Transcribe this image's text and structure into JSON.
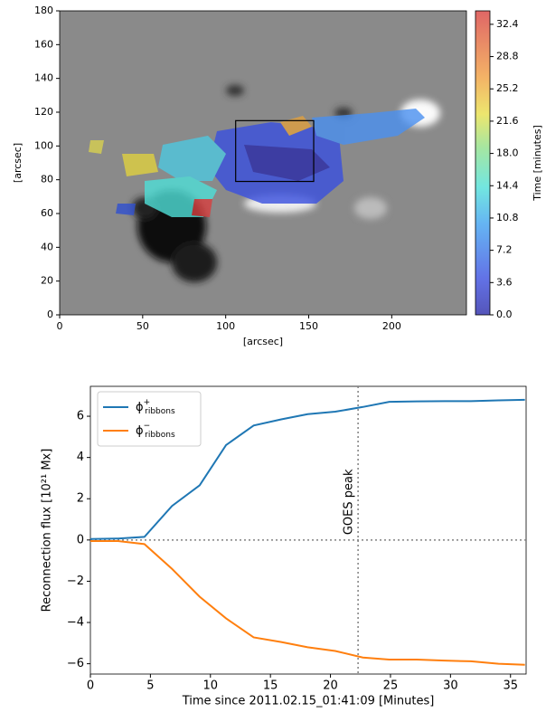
{
  "chart_data": [
    {
      "type": "image",
      "xlabel": "[arcsec]",
      "ylabel": "[arcsec]",
      "xlim": [
        0,
        245
      ],
      "xticks": [
        0,
        50,
        100,
        150,
        200
      ],
      "ylim": [
        0,
        180
      ],
      "yticks": [
        0,
        20,
        40,
        60,
        80,
        100,
        120,
        140,
        160,
        180
      ],
      "box": {
        "x": [
          106,
          153
        ],
        "y": [
          79,
          115
        ]
      },
      "colorbar": {
        "label": "Time [minutes]",
        "lim": [
          0,
          33.9
        ],
        "ticks": [
          {
            "value": 0,
            "label": "0.0"
          },
          3.6,
          7.2,
          10.8,
          14.4,
          {
            "value": 18,
            "label": "18.0"
          },
          21.6,
          25.2,
          28.8,
          32.4
        ]
      }
    },
    {
      "type": "line",
      "xlabel": "Time since 2011.02.15_01:41:09 [Minutes]",
      "ylabel": "Reconnection flux [10²¹ Mx]",
      "xlim": [
        0,
        36.3
      ],
      "xticks": [
        0,
        5,
        10,
        15,
        20,
        25,
        30,
        35
      ],
      "ylim": [
        -6.5,
        7.45
      ],
      "yticks": [
        {
          "value": -6,
          "label": "−6"
        },
        {
          "value": -4,
          "label": "−4"
        },
        {
          "value": -2,
          "label": "−2"
        },
        0,
        2,
        4,
        6
      ],
      "x": [
        0,
        2.3,
        4.5,
        6.8,
        9.1,
        11.3,
        13.6,
        15.9,
        18.1,
        20.4,
        22.7,
        24.9,
        27.2,
        29.5,
        31.7,
        34,
        36.2
      ],
      "series": [
        {
          "name": "ϕ",
          "sup": "+",
          "sub": "ribbons",
          "color": "#1f77b4",
          "values": [
            0.05,
            0.07,
            0.15,
            1.65,
            2.65,
            4.6,
            5.55,
            5.85,
            6.1,
            6.22,
            6.45,
            6.7,
            6.72,
            6.73,
            6.73,
            6.77,
            6.8
          ]
        },
        {
          "name": "ϕ",
          "sup": "−",
          "sub": "ribbons",
          "color": "#ff7f0e",
          "values": [
            -0.05,
            -0.05,
            -0.2,
            -1.4,
            -2.75,
            -3.8,
            -4.72,
            -4.95,
            -5.2,
            -5.38,
            -5.7,
            -5.8,
            -5.8,
            -5.85,
            -5.88,
            -6.0,
            -6.05
          ]
        }
      ],
      "hlines": [
        0
      ],
      "vlines": [
        22.3
      ],
      "annotation": "GOES peak"
    }
  ]
}
